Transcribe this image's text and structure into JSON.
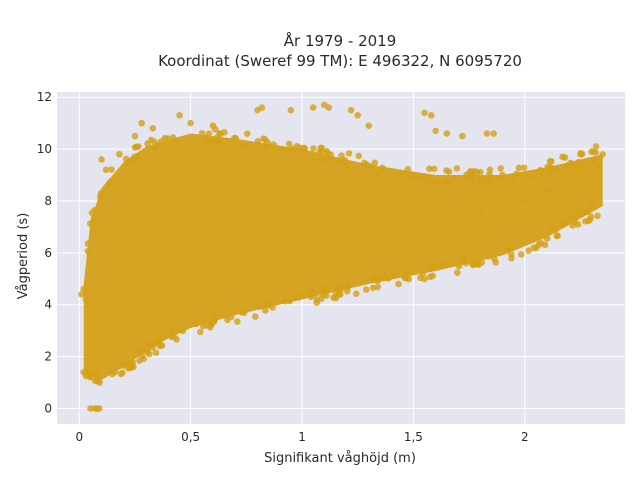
{
  "chart_data": {
    "type": "scatter",
    "title": [
      "År 1979 - 2019",
      "Koordinat (Sweref 99 TM): E 496322, N 6095720"
    ],
    "xlabel": "Signifikant våghöjd (m)",
    "ylabel": "Vågperiod (s)",
    "xlim": [
      -0.1,
      2.45
    ],
    "ylim": [
      -0.6,
      12.2
    ],
    "xticks": [
      0,
      0.5,
      1,
      1.5,
      2
    ],
    "xtick_labels": [
      "0",
      "0,5",
      "1",
      "1,5",
      "2"
    ],
    "yticks": [
      0,
      2,
      4,
      6,
      8,
      10,
      12
    ],
    "ytick_labels": [
      "0",
      "2",
      "4",
      "6",
      "8",
      "10",
      "12"
    ],
    "grid": true,
    "legend": "none",
    "marker_color": "#D4A017",
    "plot_background": "#E5E5EF",
    "cloud_envelope": {
      "lower": [
        [
          0.02,
          1.3
        ],
        [
          0.1,
          1.1
        ],
        [
          0.2,
          1.6
        ],
        [
          0.3,
          2.2
        ],
        [
          0.4,
          2.7
        ],
        [
          0.5,
          3.1
        ],
        [
          0.7,
          3.6
        ],
        [
          1.0,
          4.2
        ],
        [
          1.3,
          4.8
        ],
        [
          1.6,
          5.3
        ],
        [
          1.9,
          5.9
        ],
        [
          2.1,
          6.6
        ],
        [
          2.35,
          7.8
        ]
      ],
      "upper": [
        [
          0.02,
          4.8
        ],
        [
          0.05,
          7.2
        ],
        [
          0.1,
          8.5
        ],
        [
          0.2,
          9.5
        ],
        [
          0.3,
          10.1
        ],
        [
          0.5,
          10.6
        ],
        [
          0.7,
          10.4
        ],
        [
          1.0,
          10.0
        ],
        [
          1.3,
          9.4
        ],
        [
          1.6,
          9.0
        ],
        [
          1.9,
          9.0
        ],
        [
          2.1,
          9.3
        ],
        [
          2.35,
          9.8
        ]
      ]
    },
    "sample_points": [
      {
        "x": 0.01,
        "y": 4.4
      },
      {
        "x": 0.02,
        "y": 4.6
      },
      {
        "x": 0.03,
        "y": 4.2
      },
      {
        "x": 0.02,
        "y": 1.4
      },
      {
        "x": 0.05,
        "y": 1.2
      },
      {
        "x": 0.08,
        "y": 1.1
      },
      {
        "x": 0.05,
        "y": 0.0
      },
      {
        "x": 0.07,
        "y": 0.0
      },
      {
        "x": 0.09,
        "y": 0.0
      },
      {
        "x": 0.08,
        "y": -0.02
      },
      {
        "x": 0.1,
        "y": 9.6
      },
      {
        "x": 0.12,
        "y": 9.2
      },
      {
        "x": 0.18,
        "y": 9.8
      },
      {
        "x": 0.25,
        "y": 10.5
      },
      {
        "x": 0.28,
        "y": 11.0
      },
      {
        "x": 0.33,
        "y": 10.8
      },
      {
        "x": 0.45,
        "y": 11.3
      },
      {
        "x": 0.5,
        "y": 11.0
      },
      {
        "x": 0.6,
        "y": 10.9
      },
      {
        "x": 0.8,
        "y": 11.5
      },
      {
        "x": 0.82,
        "y": 11.6
      },
      {
        "x": 0.95,
        "y": 11.5
      },
      {
        "x": 1.05,
        "y": 11.6
      },
      {
        "x": 1.1,
        "y": 11.7
      },
      {
        "x": 1.12,
        "y": 11.6
      },
      {
        "x": 1.22,
        "y": 11.5
      },
      {
        "x": 1.25,
        "y": 11.3
      },
      {
        "x": 1.3,
        "y": 10.9
      },
      {
        "x": 1.55,
        "y": 11.4
      },
      {
        "x": 1.58,
        "y": 11.3
      },
      {
        "x": 1.6,
        "y": 10.7
      },
      {
        "x": 1.65,
        "y": 10.6
      },
      {
        "x": 1.72,
        "y": 10.5
      },
      {
        "x": 1.83,
        "y": 10.6
      },
      {
        "x": 1.86,
        "y": 10.6
      },
      {
        "x": 1.75,
        "y": 8.8
      },
      {
        "x": 1.9,
        "y": 9.0
      },
      {
        "x": 2.2,
        "y": 9.4
      },
      {
        "x": 2.25,
        "y": 9.8
      },
      {
        "x": 2.3,
        "y": 9.9
      },
      {
        "x": 2.32,
        "y": 10.1
      },
      {
        "x": 2.35,
        "y": 9.8
      },
      {
        "x": 2.33,
        "y": 9.3
      },
      {
        "x": 2.1,
        "y": 8.4
      },
      {
        "x": 2.0,
        "y": 8.0
      },
      {
        "x": 1.8,
        "y": 7.5
      }
    ]
  }
}
